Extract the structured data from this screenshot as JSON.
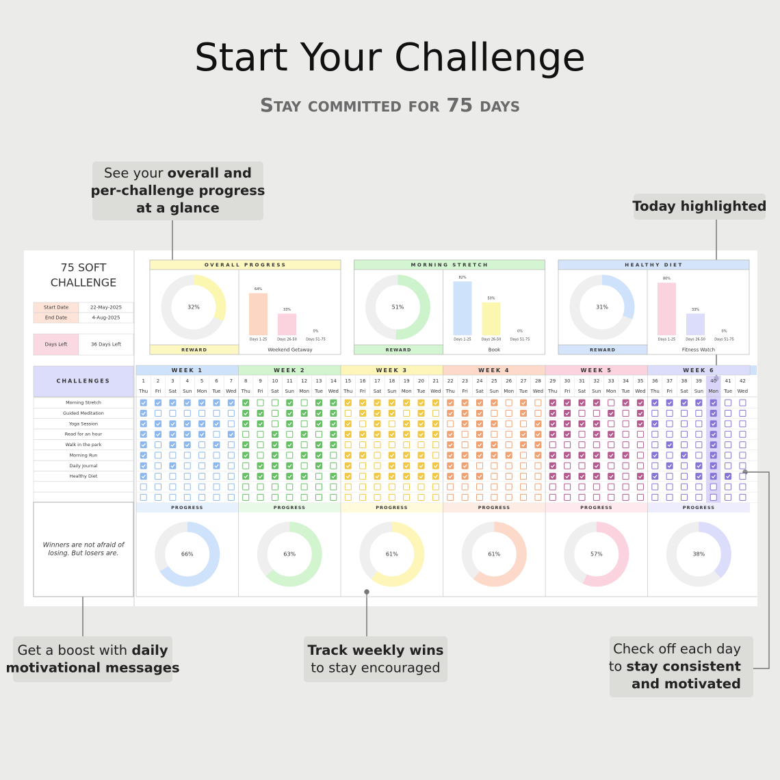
{
  "header": {
    "title": "Start Your Challenge",
    "subtitle": "Stay committed for 75 days"
  },
  "callouts": [
    {
      "align": "middle",
      "lines": [
        [
          {
            "text": "See your "
          },
          {
            "text": "overall and",
            "bold": true
          }
        ],
        [
          {
            "text": "per-challenge progress",
            "bold": true
          }
        ],
        [
          {
            "text": "at a glance",
            "bold": true
          }
        ]
      ]
    },
    {
      "align": "middle",
      "lines": [
        [
          {
            "text": "Today highlighted",
            "bold": true
          }
        ]
      ]
    },
    {
      "align": "middle",
      "lines": [
        [
          {
            "text": "Get a boost with "
          },
          {
            "text": "daily",
            "bold": true
          }
        ],
        [
          {
            "text": "motivational messages",
            "bold": true
          }
        ]
      ]
    },
    {
      "align": "middle",
      "lines": [
        [
          {
            "text": "Track weekly wins",
            "bold": true
          }
        ],
        [
          {
            "text": "to stay encouraged"
          }
        ]
      ]
    },
    {
      "align": "end",
      "lines": [
        [
          {
            "text": "Check off each day"
          }
        ],
        [
          {
            "text": "to "
          },
          {
            "text": "stay consistent",
            "bold": true
          }
        ],
        [
          {
            "text": "and motivated",
            "bold": true
          }
        ]
      ]
    }
  ],
  "sheet": {
    "title_lines": [
      "75 SOFT",
      "CHALLENGE"
    ],
    "start_date": {
      "label": "Start Date",
      "value": "22-May-2025"
    },
    "end_date": {
      "label": "End Date",
      "value": "4-Aug-2025"
    },
    "days_left": {
      "label": "Days Left",
      "value": "36 Days Left"
    },
    "challenges_header": "CHALLENGES",
    "quote_lines": [
      "Winners are not afraid of",
      "losing. But losers are."
    ],
    "today": 40,
    "panels": [
      {
        "title": "OVERALL PROGRESS",
        "color": "#fbf7b0",
        "header_color": "#fdf8c2",
        "progress": {
          "value": 32,
          "label": "32%"
        },
        "bars": [
          {
            "label": "Days 1-25",
            "value": 64,
            "value_label": "64%",
            "color": "#fcd5c3"
          },
          {
            "label": "Days 26-50",
            "value": 33,
            "value_label": "33%",
            "color": "#fbd3de"
          },
          {
            "label": "Days 51-75",
            "value": 0,
            "value_label": "0%",
            "color": "#ddd"
          }
        ],
        "reward_label": "REWARD",
        "reward": "Weekend Getaway"
      },
      {
        "title": "MORNING STRETCH",
        "color": "#cdf3cc",
        "header_color": "#d4f5d2",
        "progress": {
          "value": 51,
          "label": "51%"
        },
        "bars": [
          {
            "label": "Days 1-25",
            "value": 82,
            "value_label": "82%",
            "color": "#cfe2fb"
          },
          {
            "label": "Days 26-50",
            "value": 50,
            "value_label": "50%",
            "color": "#fbf7b0"
          },
          {
            "label": "Days 51-75",
            "value": 0,
            "value_label": "0%",
            "color": "#ddd"
          }
        ],
        "reward_label": "REWARD",
        "reward": "Book"
      },
      {
        "title": "HEALTHY DIET",
        "color": "#cfe2fb",
        "header_color": "#d4e5fb",
        "progress": {
          "value": 31,
          "label": "31%"
        },
        "bars": [
          {
            "label": "Days 1-25",
            "value": 80,
            "value_label": "80%",
            "color": "#fbd3de"
          },
          {
            "label": "Days 26-50",
            "value": 33,
            "value_label": "33%",
            "color": "#dcdcfb"
          },
          {
            "label": "Days 51-75",
            "value": 0,
            "value_label": "0%",
            "color": "#ddd"
          }
        ],
        "reward_label": "REWARD",
        "reward": "Fitness Watch"
      }
    ],
    "weeks": [
      {
        "label": "WEEK 1",
        "color": "#cfe2fb",
        "check": "#8db8ee",
        "progress_label": "PROGRESS",
        "progress": {
          "value": 66,
          "label": "66%"
        }
      },
      {
        "label": "WEEK 2",
        "color": "#d2f5d0",
        "check": "#67bf65",
        "progress_label": "PROGRESS",
        "progress": {
          "value": 63,
          "label": "63%"
        }
      },
      {
        "label": "WEEK 3",
        "color": "#fdf6b8",
        "check": "#f0c846",
        "progress_label": "PROGRESS",
        "progress": {
          "value": 61,
          "label": "61%"
        }
      },
      {
        "label": "WEEK 4",
        "color": "#fcd9c8",
        "check": "#f0a172",
        "progress_label": "PROGRESS",
        "progress": {
          "value": 61,
          "label": "61%"
        }
      },
      {
        "label": "WEEK 5",
        "color": "#fbd3de",
        "check": "#b45a8e",
        "progress_label": "PROGRESS",
        "progress": {
          "value": 57,
          "label": "57%"
        }
      },
      {
        "label": "WEEK 6",
        "color": "#dcdcfb",
        "check": "#8774d6",
        "progress_label": "PROGRESS",
        "progress": {
          "value": 38,
          "label": "38%"
        }
      }
    ],
    "days": [
      1,
      2,
      3,
      4,
      5,
      6,
      7,
      8,
      9,
      10,
      11,
      12,
      13,
      14,
      15,
      16,
      17,
      18,
      19,
      20,
      21,
      22,
      23,
      24,
      25,
      26,
      27,
      28,
      29,
      30,
      31,
      32,
      33,
      34,
      35,
      36,
      37,
      38,
      39,
      40,
      41,
      42
    ],
    "weekdays": [
      "Thu",
      "Fri",
      "Sat",
      "Sun",
      "Mon",
      "Tue",
      "Wed",
      "Thu",
      "Fri",
      "Sat",
      "Sun",
      "Mon",
      "Tue",
      "Wed",
      "Thu",
      "Fri",
      "Sat",
      "Sun",
      "Mon",
      "Tue",
      "Wed",
      "Thu",
      "Fri",
      "Sat",
      "Sun",
      "Mon",
      "Tue",
      "Wed",
      "Thu",
      "Fri",
      "Sat",
      "Sun",
      "Mon",
      "Tue",
      "Wed",
      "Thu",
      "Fri",
      "Sat",
      "Sun",
      "Mon",
      "Tue",
      "Wed"
    ],
    "challenges": [
      "Morning Stretch",
      "Guided Meditation",
      "Yoga Session",
      "Read for an hour",
      "Walk in the park",
      "Morning Run",
      "Daily Journal",
      "Healthy Diet",
      null,
      null
    ],
    "checks": [
      [
        1,
        1,
        1,
        1,
        1,
        1,
        1,
        1,
        0,
        0,
        1,
        0,
        1,
        1,
        1,
        1,
        1,
        1,
        1,
        1,
        1,
        1,
        1,
        1,
        1,
        0,
        1,
        0,
        1,
        1,
        1,
        1,
        0,
        1,
        1,
        1,
        1,
        1,
        1,
        1,
        0,
        0
      ],
      [
        1,
        0,
        0,
        0,
        0,
        0,
        0,
        1,
        1,
        0,
        1,
        1,
        1,
        1,
        0,
        1,
        1,
        1,
        0,
        1,
        0,
        1,
        1,
        1,
        0,
        0,
        1,
        0,
        1,
        1,
        0,
        0,
        1,
        0,
        1,
        0,
        0,
        0,
        0,
        1,
        0,
        0
      ],
      [
        1,
        1,
        1,
        1,
        1,
        1,
        0,
        1,
        1,
        0,
        1,
        0,
        1,
        1,
        1,
        0,
        1,
        0,
        1,
        1,
        1,
        0,
        1,
        1,
        1,
        0,
        0,
        1,
        1,
        1,
        1,
        1,
        0,
        0,
        1,
        1,
        0,
        0,
        0,
        1,
        0,
        0
      ],
      [
        1,
        1,
        1,
        1,
        1,
        0,
        1,
        0,
        0,
        1,
        0,
        1,
        0,
        1,
        1,
        1,
        1,
        1,
        1,
        1,
        1,
        1,
        0,
        1,
        0,
        0,
        1,
        1,
        1,
        1,
        0,
        1,
        1,
        0,
        0,
        0,
        0,
        0,
        0,
        1,
        0,
        0
      ],
      [
        1,
        0,
        1,
        1,
        0,
        1,
        0,
        1,
        0,
        1,
        1,
        0,
        1,
        1,
        0,
        0,
        0,
        0,
        0,
        0,
        0,
        1,
        0,
        1,
        1,
        0,
        1,
        1,
        0,
        0,
        0,
        0,
        0,
        0,
        0,
        0,
        1,
        0,
        0,
        1,
        0,
        0
      ],
      [
        1,
        0,
        0,
        0,
        0,
        0,
        0,
        1,
        0,
        1,
        0,
        1,
        1,
        0,
        1,
        1,
        0,
        1,
        1,
        1,
        0,
        1,
        1,
        1,
        1,
        1,
        0,
        1,
        1,
        1,
        1,
        1,
        1,
        1,
        0,
        1,
        0,
        1,
        0,
        1,
        0,
        0
      ],
      [
        1,
        0,
        1,
        0,
        0,
        1,
        0,
        0,
        1,
        1,
        1,
        0,
        1,
        0,
        1,
        0,
        0,
        1,
        1,
        1,
        1,
        1,
        1,
        0,
        0,
        0,
        0,
        0,
        1,
        0,
        0,
        1,
        0,
        0,
        0,
        0,
        1,
        0,
        1,
        1,
        0,
        0
      ],
      [
        1,
        0,
        0,
        0,
        0,
        0,
        0,
        1,
        1,
        1,
        1,
        1,
        0,
        1,
        1,
        0,
        1,
        1,
        1,
        1,
        1,
        1,
        1,
        1,
        0,
        0,
        0,
        0,
        1,
        1,
        1,
        1,
        1,
        0,
        1,
        1,
        0,
        0,
        1,
        1,
        1,
        0
      ],
      [
        0,
        0,
        0,
        0,
        0,
        0,
        0,
        0,
        0,
        0,
        0,
        0,
        0,
        0,
        0,
        0,
        0,
        0,
        0,
        0,
        0,
        0,
        0,
        0,
        0,
        0,
        0,
        0,
        0,
        0,
        0,
        0,
        0,
        0,
        0,
        0,
        0,
        0,
        0,
        0,
        0,
        0
      ],
      [
        0,
        0,
        0,
        0,
        0,
        0,
        0,
        0,
        0,
        0,
        0,
        0,
        0,
        0,
        0,
        0,
        0,
        0,
        0,
        0,
        0,
        0,
        0,
        0,
        0,
        0,
        0,
        0,
        0,
        0,
        0,
        0,
        0,
        0,
        0,
        0,
        0,
        0,
        0,
        0,
        0,
        0
      ]
    ]
  }
}
